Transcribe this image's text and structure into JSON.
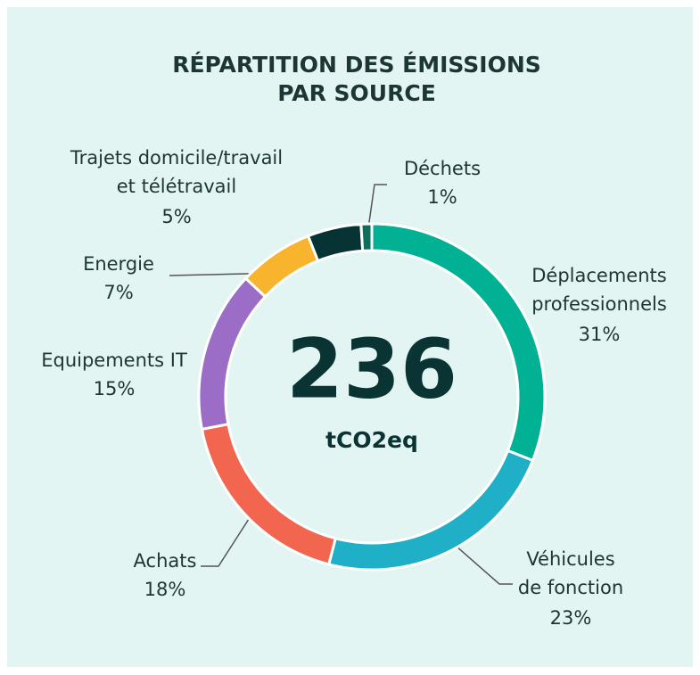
{
  "chart_data": {
    "type": "donut",
    "title": "RÉPARTITION DES ÉMISSIONS\nPAR SOURCE",
    "center_value": 236,
    "center_label": "tCO2eq",
    "categories": [
      "Déplacements\nprofessionnels",
      "Véhicules\nde fonction",
      "Achats",
      "Equipements IT",
      "Energie",
      "Trajets domicile/travail\net télétravail",
      "Déchets"
    ],
    "values": [
      31,
      23,
      18,
      15,
      7,
      5,
      1
    ],
    "value_labels": [
      "31%",
      "23%",
      "18%",
      "15%",
      "7%",
      "5%",
      "1%"
    ],
    "colors": [
      "#00b194",
      "#1fb0c8",
      "#f26650",
      "#9b6dc6",
      "#f9b42d",
      "#063333",
      "#0f6e5a"
    ]
  }
}
